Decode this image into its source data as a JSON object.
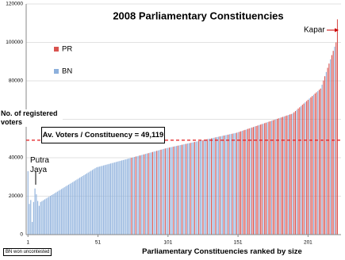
{
  "chart_data": {
    "type": "bar",
    "title": "2008 Parliamentary Constituencies",
    "y_label": "No. of registered voters",
    "x_label": "Parliamentary Constituencies ranked by size",
    "xlim": [
      0,
      224
    ],
    "xticks": [
      1,
      51,
      101,
      151,
      201
    ],
    "ylim": [
      0,
      120000
    ],
    "yticks": [
      0,
      20000,
      40000,
      60000,
      80000,
      100000,
      120000
    ],
    "grid": true,
    "average": {
      "value": 49119,
      "label": "Av. Voters / Constituency = 49,119",
      "color": "#e31a1c"
    },
    "annotations": [
      "Putra Jaya",
      "Kapar",
      "BN won uncontested"
    ],
    "series": [
      {
        "name": "PR",
        "color": "#d9534f",
        "x": [
          75,
          78,
          81,
          84,
          87,
          90,
          93,
          96,
          99,
          102,
          105,
          108,
          111,
          114,
          117,
          120,
          123,
          126,
          129,
          132,
          135,
          138,
          141,
          144,
          147,
          150,
          152,
          153,
          155,
          156,
          158,
          159,
          161,
          162,
          164,
          165,
          167,
          168,
          170,
          171,
          173,
          174,
          176,
          177,
          179,
          180,
          182,
          183,
          185,
          186,
          188,
          189,
          191,
          192,
          194,
          195,
          197,
          198,
          200,
          201,
          203,
          204,
          206,
          207,
          209,
          210,
          212,
          213,
          215,
          216,
          218,
          219,
          221,
          222
        ],
        "values": [
          40000,
          40600,
          41200,
          41800,
          42400,
          43000,
          43600,
          44200,
          44800,
          45320,
          45800,
          46280,
          46760,
          47240,
          47720,
          48200,
          48680,
          49160,
          49640,
          50120,
          50600,
          51080,
          51560,
          52040,
          52520,
          53000,
          53500,
          53750,
          54250,
          54500,
          55000,
          55250,
          55750,
          56000,
          56500,
          56750,
          57250,
          57500,
          58000,
          58250,
          58750,
          59000,
          59500,
          59750,
          60250,
          60500,
          61000,
          61250,
          61750,
          62000,
          62500,
          62750,
          63650,
          64300,
          65600,
          66250,
          67550,
          68200,
          69500,
          70150,
          71450,
          72100,
          73400,
          74050,
          75350,
          76000,
          80200,
          82400,
          86800,
          89000,
          93400,
          95600,
          100000,
          112000
        ]
      },
      {
        "name": "BN",
        "color": "#8db0dc",
        "x": [
          1,
          2,
          3,
          4,
          5,
          6,
          7,
          8,
          9,
          10,
          11,
          12,
          13,
          14,
          15,
          16,
          17,
          18,
          19,
          20,
          21,
          22,
          23,
          24,
          25,
          26,
          27,
          28,
          29,
          30,
          31,
          32,
          33,
          34,
          35,
          36,
          37,
          38,
          39,
          40,
          41,
          42,
          43,
          44,
          45,
          46,
          47,
          48,
          49,
          50,
          51,
          52,
          53,
          54,
          55,
          56,
          57,
          58,
          59,
          60,
          61,
          62,
          63,
          64,
          65,
          66,
          67,
          68,
          69,
          70,
          71,
          72,
          73,
          74,
          76,
          77,
          79,
          80,
          82,
          83,
          85,
          86,
          88,
          89,
          91,
          92,
          94,
          95,
          97,
          98,
          100,
          101,
          103,
          104,
          106,
          107,
          109,
          110,
          112,
          113,
          115,
          116,
          118,
          119,
          121,
          122,
          124,
          125,
          127,
          128,
          130,
          131,
          133,
          134,
          136,
          137,
          139,
          140,
          142,
          143,
          145,
          146,
          148,
          149,
          151,
          154,
          157,
          160,
          163,
          166,
          169,
          172,
          175,
          178,
          181,
          184,
          187,
          190,
          193,
          196,
          199,
          202,
          205,
          208,
          211,
          214,
          217,
          220
        ],
        "values": [
          33000,
          16000,
          18000,
          6600,
          17000,
          24000,
          21000,
          17500,
          15000,
          17000,
          17450,
          17900,
          18350,
          18800,
          19250,
          19700,
          20150,
          20600,
          21050,
          21500,
          21950,
          22400,
          22850,
          23300,
          23750,
          24200,
          24650,
          25100,
          25550,
          26000,
          26450,
          26900,
          27350,
          27800,
          28250,
          28700,
          29150,
          29600,
          30050,
          30500,
          30950,
          31400,
          31850,
          32300,
          32750,
          33200,
          33650,
          34100,
          34550,
          35000,
          35200,
          35400,
          35600,
          35800,
          36000,
          36200,
          36400,
          36600,
          36800,
          37000,
          37200,
          37400,
          37600,
          37800,
          38000,
          38200,
          38400,
          38600,
          38800,
          39000,
          39200,
          39400,
          39600,
          39800,
          40200,
          40400,
          40800,
          41000,
          41400,
          41600,
          42000,
          42200,
          42600,
          42800,
          43200,
          43400,
          43800,
          44000,
          44400,
          44600,
          45000,
          45160,
          45480,
          45640,
          45960,
          46120,
          46440,
          46600,
          46920,
          47080,
          47400,
          47560,
          47880,
          48040,
          48360,
          48520,
          48840,
          49000,
          49320,
          49480,
          49800,
          49960,
          50280,
          50440,
          50760,
          50920,
          51240,
          51400,
          51720,
          51880,
          52200,
          52360,
          52680,
          52840,
          53250,
          54000,
          54750,
          55500,
          56250,
          57000,
          57750,
          58500,
          59250,
          60000,
          60750,
          61500,
          62250,
          63000,
          64950,
          66900,
          68850,
          70800,
          72750,
          74700,
          78000,
          84600,
          91200,
          97800
        ]
      }
    ]
  }
}
